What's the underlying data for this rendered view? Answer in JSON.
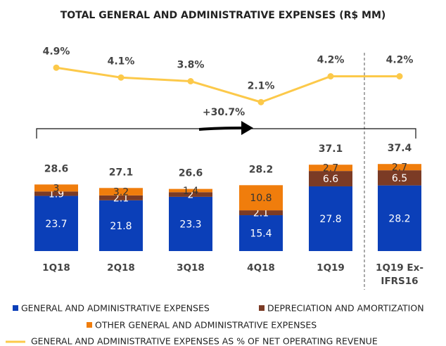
{
  "chart_data": {
    "type": "stacked_bar_line",
    "title": "TOTAL GENERAL AND ADMINISTRATIVE EXPENSES (R$ MM)",
    "categories": [
      "1Q18",
      "2Q18",
      "3Q18",
      "4Q18",
      "1Q19",
      "1Q19 Ex-IFRS16"
    ],
    "series": [
      {
        "name": "GENERAL AND ADMINISTRATIVE EXPENSES",
        "color": "#0b3fb8",
        "values": [
          23.7,
          21.8,
          23.3,
          15.4,
          27.8,
          28.2
        ]
      },
      {
        "name": "DEPRECIATION AND AMORTIZATION",
        "color": "#7b3b25",
        "values": [
          1.9,
          2.1,
          2.0,
          2.1,
          6.6,
          6.5
        ]
      },
      {
        "name": "OTHER GENERAL AND ADMINISTRATIVE EXPENSES",
        "color": "#f07d0c",
        "values": [
          3.0,
          3.2,
          1.4,
          10.8,
          2.7,
          2.7
        ]
      }
    ],
    "totals": [
      28.6,
      27.1,
      26.6,
      28.2,
      37.1,
      37.4
    ],
    "line": {
      "name": "GENERAL AND ADMINISTRATIVE EXPENSES AS % OF NET OPERATING REVENUE",
      "color": "#fcc94a",
      "values": [
        4.9,
        4.1,
        3.8,
        2.1,
        4.2,
        4.2
      ],
      "value_labels": [
        "4.9%",
        "4.1%",
        "3.8%",
        "2.1%",
        "4.2%",
        "4.2%"
      ]
    },
    "annotation": "+30.7%"
  }
}
